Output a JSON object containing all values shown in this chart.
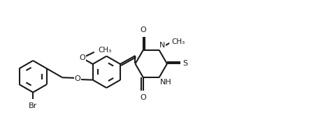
{
  "bg_color": "#ffffff",
  "lc": "#1a1a1a",
  "lw": 1.5,
  "fs": 8.0,
  "figsize": [
    4.72,
    1.98
  ],
  "dpi": 100,
  "xlim": [
    0,
    11.0
  ],
  "ylim": [
    0.0,
    4.4
  ]
}
